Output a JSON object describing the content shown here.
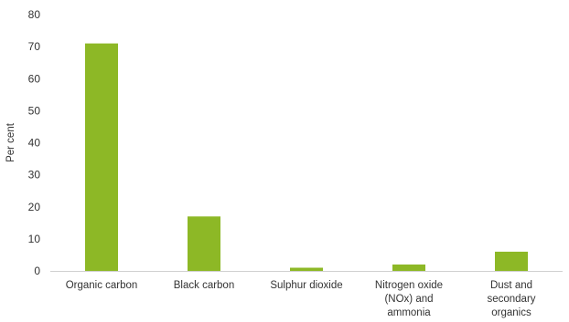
{
  "chart_data": {
    "type": "bar",
    "categories": [
      [
        "Organic carbon"
      ],
      [
        "Black carbon"
      ],
      [
        "Sulphur dioxide"
      ],
      [
        "Nitrogen oxide",
        "(NOx) and",
        "ammonia"
      ],
      [
        "Dust and",
        "secondary",
        "organics"
      ]
    ],
    "values": [
      71,
      17,
      1,
      2,
      6
    ],
    "ylabel": "Per cent",
    "xlabel": "",
    "ylim": [
      0,
      80
    ],
    "yticks": [
      0,
      10,
      20,
      30,
      40,
      50,
      60,
      70,
      80
    ],
    "grid": false,
    "bar_color": "#8db826"
  }
}
